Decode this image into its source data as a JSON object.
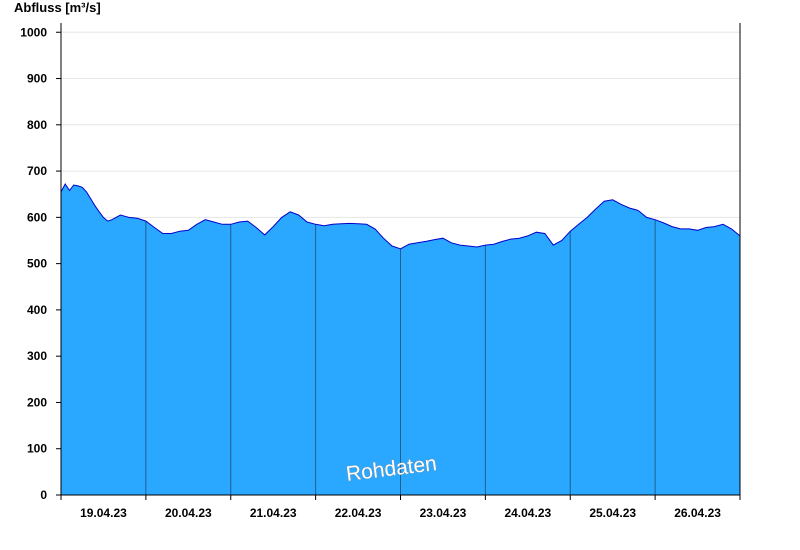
{
  "chart_data": {
    "type": "area",
    "ylabel": "Abfluss [m³/s]",
    "ylim": [
      0,
      1020
    ],
    "yticks": [
      0,
      100,
      200,
      300,
      400,
      500,
      600,
      700,
      800,
      900,
      1000
    ],
    "xlim_days": [
      0,
      8
    ],
    "xtick_labels": [
      "19.04.23",
      "20.04.23",
      "21.04.23",
      "22.04.23",
      "23.04.23",
      "24.04.23",
      "25.04.23",
      "26.04.23"
    ],
    "day_boundaries": [
      "19.04.23",
      "20.04.23",
      "21.04.23",
      "22.04.23",
      "23.04.23",
      "24.04.23",
      "25.04.23",
      "26.04.23",
      "27.04.23"
    ],
    "grid": true,
    "watermark": "Rohdaten",
    "colors": {
      "fill": "#2aa7ff",
      "line": "#0000cc",
      "grid": "#e6e6e6",
      "axis": "#000000",
      "day_line": "#1f5f8f"
    },
    "series": [
      {
        "x": [
          0,
          0.05,
          0.1,
          0.15,
          0.2,
          0.25,
          0.3,
          0.35,
          0.4,
          0.45,
          0.5,
          0.55,
          0.6,
          0.7,
          0.8,
          0.9,
          1.0,
          1.1,
          1.2,
          1.3,
          1.4,
          1.5,
          1.6,
          1.7,
          1.8,
          1.9,
          2.0,
          2.1,
          2.2,
          2.3,
          2.4,
          2.5,
          2.6,
          2.7,
          2.8,
          2.9,
          3.0,
          3.1,
          3.2,
          3.3,
          3.4,
          3.5,
          3.6,
          3.7,
          3.8,
          3.9,
          4.0,
          4.1,
          4.2,
          4.3,
          4.4,
          4.5,
          4.6,
          4.7,
          4.8,
          4.9,
          5.0,
          5.1,
          5.2,
          5.3,
          5.4,
          5.5,
          5.6,
          5.7,
          5.8,
          5.9,
          6.0,
          6.1,
          6.2,
          6.3,
          6.4,
          6.5,
          6.6,
          6.7,
          6.8,
          6.9,
          7.0,
          7.1,
          7.2,
          7.3,
          7.4,
          7.5,
          7.6,
          7.7,
          7.8,
          7.9,
          8.0
        ],
        "values": [
          655,
          672,
          658,
          670,
          668,
          665,
          655,
          640,
          625,
          612,
          600,
          592,
          595,
          605,
          600,
          598,
          592,
          578,
          565,
          565,
          570,
          572,
          585,
          595,
          590,
          585,
          585,
          590,
          592,
          578,
          562,
          580,
          600,
          612,
          605,
          590,
          585,
          582,
          585,
          586,
          587,
          586,
          585,
          575,
          555,
          538,
          532,
          542,
          545,
          548,
          552,
          555,
          545,
          540,
          538,
          536,
          540,
          542,
          548,
          553,
          555,
          560,
          568,
          565,
          540,
          550,
          570,
          585,
          600,
          618,
          635,
          638,
          628,
          620,
          615,
          600,
          595,
          588,
          580,
          575,
          575,
          572,
          578,
          580,
          585,
          575,
          560
        ]
      }
    ]
  }
}
